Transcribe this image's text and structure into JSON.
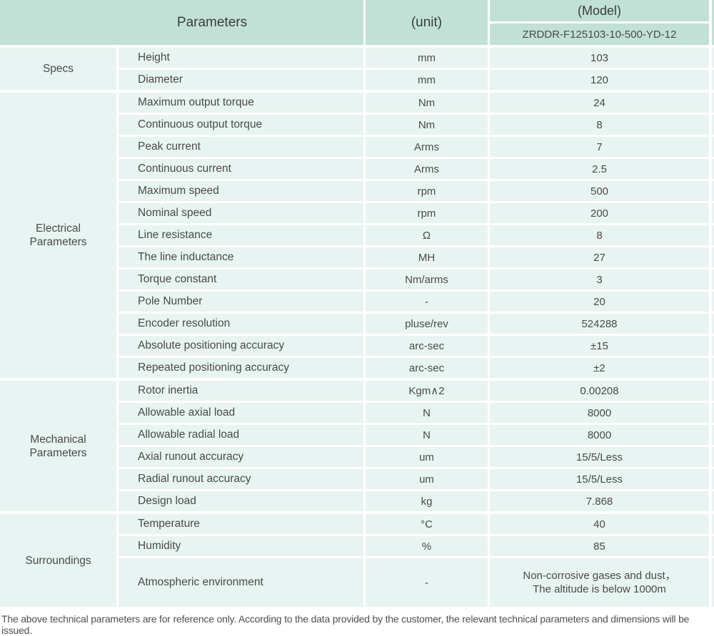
{
  "header": {
    "parameters_label": "Parameters",
    "unit_label": "(unit)",
    "model_label": "(Model)",
    "model_value": "ZRDDR-F125103-10-500-YD-12"
  },
  "colors": {
    "header_bg": "#c1e1d7",
    "row_bg": "#e8f4f1",
    "grid_white": "#ffffff",
    "text": "#4a4a4a"
  },
  "sections": [
    {
      "name": "Specs",
      "rows": [
        {
          "param": "Height",
          "unit": "mm",
          "value": "103"
        },
        {
          "param": "Diameter",
          "unit": "mm",
          "value": "120"
        }
      ]
    },
    {
      "name": "Electrical\nParameters",
      "rows": [
        {
          "param": "Maximum output torque",
          "unit": "Nm",
          "value": "24"
        },
        {
          "param": "Continuous output torque",
          "unit": "Nm",
          "value": "8"
        },
        {
          "param": "Peak current",
          "unit": "Arms",
          "value": "7"
        },
        {
          "param": "Continuous current",
          "unit": "Arms",
          "value": "2.5"
        },
        {
          "param": "Maximum speed",
          "unit": "rpm",
          "value": "500"
        },
        {
          "param": "Nominal speed",
          "unit": "rpm",
          "value": "200"
        },
        {
          "param": "Line resistance",
          "unit": "Ω",
          "value": "8"
        },
        {
          "param": "The line inductance",
          "unit": "MH",
          "value": "27"
        },
        {
          "param": "Torque constant",
          "unit": "Nm/arms",
          "value": "3"
        },
        {
          "param": "Pole Number",
          "unit": "-",
          "value": "20"
        },
        {
          "param": "Encoder resolution",
          "unit": "pluse/rev",
          "value": "524288"
        },
        {
          "param": "Absolute positioning accuracy",
          "unit": "arc-sec",
          "value": "±15"
        },
        {
          "param": "Repeated positioning accuracy",
          "unit": "arc-sec",
          "value": "±2"
        }
      ]
    },
    {
      "name": "Mechanical\nParameters",
      "rows": [
        {
          "param": "Rotor inertia",
          "unit": "Kgm∧2",
          "value": "0.00208"
        },
        {
          "param": "Allowable axial load",
          "unit": "N",
          "value": "8000"
        },
        {
          "param": "Allowable radial load",
          "unit": "N",
          "value": "8000"
        },
        {
          "param": "Axial runout accuracy",
          "unit": "um",
          "value": "15/5/Less"
        },
        {
          "param": "Radial runout accuracy",
          "unit": "um",
          "value": "15/5/Less"
        },
        {
          "param": "Design load",
          "unit": "kg",
          "value": "7.868"
        }
      ]
    },
    {
      "name": "Surroundings",
      "rows": [
        {
          "param": "Temperature",
          "unit": "°C",
          "value": "40"
        },
        {
          "param": "Humidity",
          "unit": "%",
          "value": "85"
        },
        {
          "param": "Atmospheric environment",
          "unit": "-",
          "value": "Non-corrosive gases and dust，\nThe altitude is below 1000m"
        }
      ]
    }
  ],
  "footer": {
    "note": "The above technical parameters are for reference only. According to the data provided by the customer, the relevant technical parameters and dimensions will be issued."
  }
}
